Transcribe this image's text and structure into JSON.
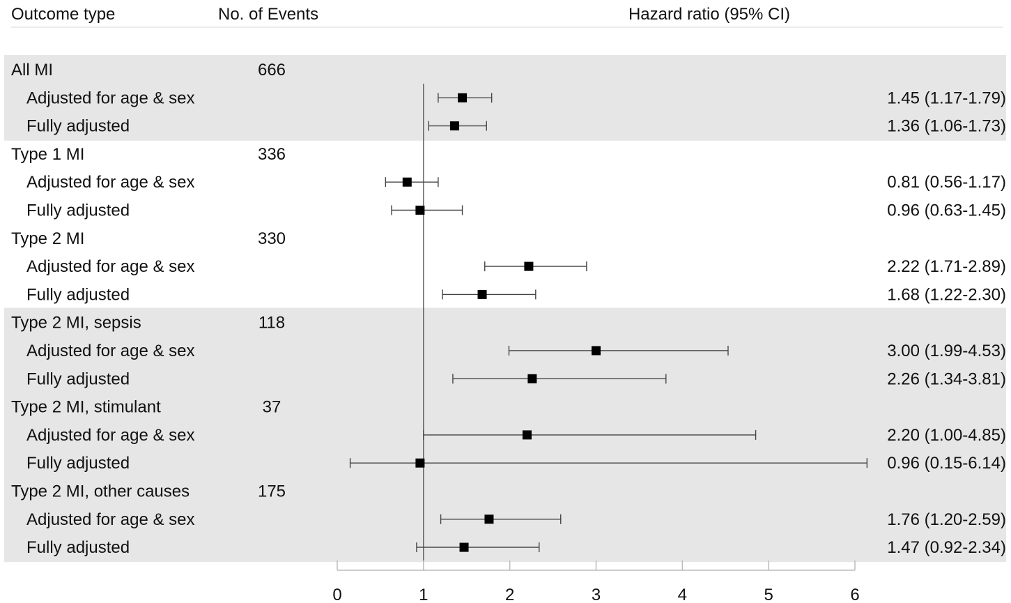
{
  "header": {
    "outcome_col": "Outcome type",
    "events_col": "No. of Events",
    "hr_col": "Hazard ratio (95% CI)"
  },
  "colors": {
    "band": "#e6e6e6",
    "marker": "#000000",
    "line": "#444444"
  },
  "chart_data": {
    "type": "forest",
    "xlim": [
      0,
      6
    ],
    "ticks": [
      "0",
      "1",
      "2",
      "3",
      "4",
      "5",
      "6"
    ],
    "reference_line": 1,
    "groups": [
      {
        "label": "All MI",
        "events": "666",
        "shaded": true,
        "rows": [
          {
            "label": "Adjusted for age & sex",
            "hr": 1.45,
            "lo": 1.17,
            "hi": 1.79,
            "text": "1.45 (1.17-1.79)"
          },
          {
            "label": "Fully adjusted",
            "hr": 1.36,
            "lo": 1.06,
            "hi": 1.73,
            "text": "1.36 (1.06-1.73)"
          }
        ]
      },
      {
        "label": "Type 1 MI",
        "events": "336",
        "shaded": false,
        "rows": [
          {
            "label": "Adjusted for age & sex",
            "hr": 0.81,
            "lo": 0.56,
            "hi": 1.17,
            "text": "0.81 (0.56-1.17)"
          },
          {
            "label": "Fully adjusted",
            "hr": 0.96,
            "lo": 0.63,
            "hi": 1.45,
            "text": "0.96 (0.63-1.45)"
          }
        ]
      },
      {
        "label": "Type 2 MI",
        "events": "330",
        "shaded": false,
        "rows": [
          {
            "label": "Adjusted for age & sex",
            "hr": 2.22,
            "lo": 1.71,
            "hi": 2.89,
            "text": "2.22 (1.71-2.89)"
          },
          {
            "label": "Fully adjusted",
            "hr": 1.68,
            "lo": 1.22,
            "hi": 2.3,
            "text": "1.68 (1.22-2.30)"
          }
        ]
      },
      {
        "label": "Type 2 MI, sepsis",
        "events": "118",
        "shaded": true,
        "rows": [
          {
            "label": "Adjusted for age & sex",
            "hr": 3.0,
            "lo": 1.99,
            "hi": 4.53,
            "text": "3.00 (1.99-4.53)"
          },
          {
            "label": "Fully adjusted",
            "hr": 2.26,
            "lo": 1.34,
            "hi": 3.81,
            "text": "2.26 (1.34-3.81)"
          }
        ]
      },
      {
        "label": "Type 2 MI, stimulant",
        "events": "37",
        "shaded": true,
        "rows": [
          {
            "label": "Adjusted for age & sex",
            "hr": 2.2,
            "lo": 1.0,
            "hi": 4.85,
            "text": "2.20 (1.00-4.85)"
          },
          {
            "label": "Fully adjusted",
            "hr": 0.96,
            "lo": 0.15,
            "hi": 6.14,
            "text": "0.96 (0.15-6.14)"
          }
        ]
      },
      {
        "label": "Type 2 MI, other causes",
        "events": "175",
        "shaded": true,
        "rows": [
          {
            "label": "Adjusted for age & sex",
            "hr": 1.76,
            "lo": 1.2,
            "hi": 2.59,
            "text": "1.76 (1.20-2.59)"
          },
          {
            "label": "Fully adjusted",
            "hr": 1.47,
            "lo": 0.92,
            "hi": 2.34,
            "text": "1.47 (0.92-2.34)"
          }
        ]
      }
    ]
  }
}
